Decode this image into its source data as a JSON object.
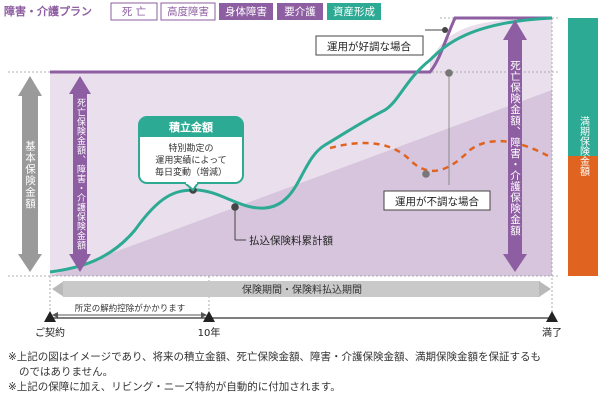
{
  "legend": {
    "category": "障害・介護プラン",
    "tags": [
      "死 亡",
      "高度障害",
      "身体障害",
      "要介護",
      "資産形成"
    ]
  },
  "left_bar_label": "基本保険金額",
  "inner_arrow_label": "死亡保険金額、障害・介護保険金額",
  "right_arrow_label": "死亡保険金額、障害・介護保険金額",
  "maturity_bar_label": "満期保険金額",
  "callout": {
    "title": "積立金額",
    "body": [
      "特別勘定の",
      "運用実績によって",
      "毎日変動（増減）"
    ]
  },
  "good_performance": "運用が好調な場合",
  "bad_performance": "運用が不調な場合",
  "premium_total": "払込保険料累計額",
  "period_label": "保険期間・保険料払込期間",
  "surrender_label": "所定の解約控除がかかります",
  "axis": {
    "start": "ご契約",
    "mid": "10年",
    "end": "満了"
  },
  "notes": [
    "※上記の図はイメージであり、将来の積立金額、死亡保険金額、障害・介護保険金額、満期保険金額を保証するも",
    "のではありません。",
    "※上記の保障に加え、リビング・ニーズ特約が自動的に付加されます。"
  ],
  "colors": {
    "purple": "#8e5ea2",
    "green": "#2daa94",
    "orange": "#e06420",
    "band": "#e9dcea",
    "triangle": "#d7c6dd",
    "gray": "#9a9a9a"
  }
}
